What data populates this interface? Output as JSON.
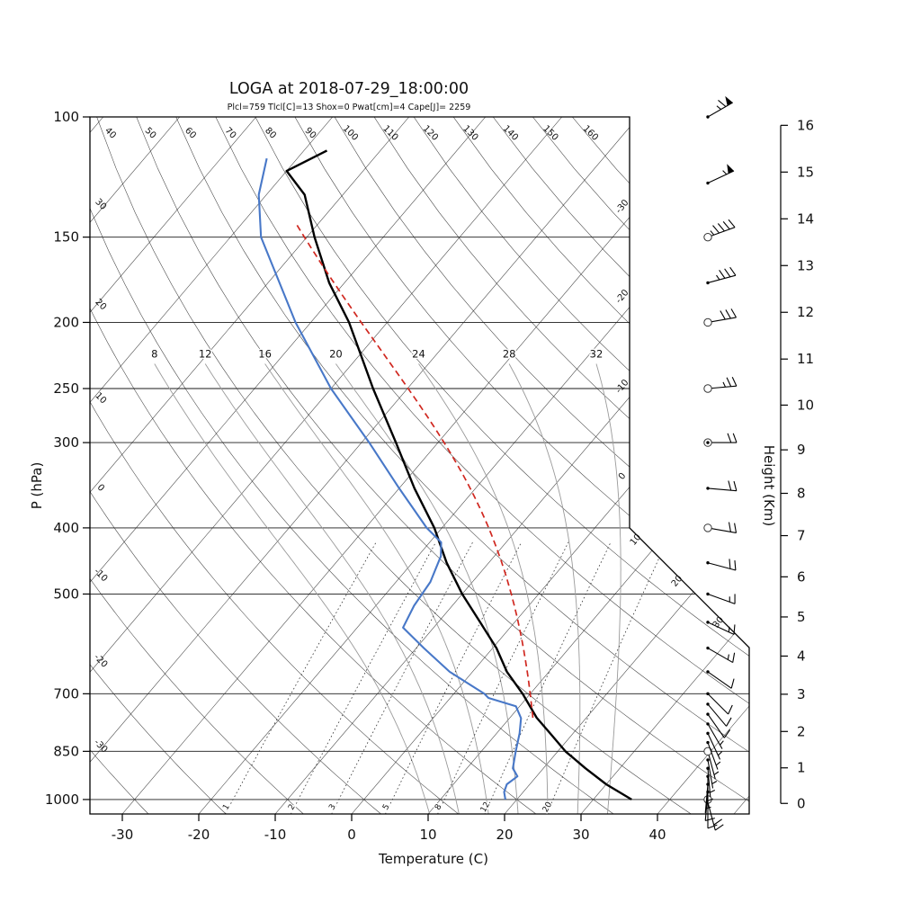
{
  "header": {
    "title": "LOGA at 2018-07-29_18:00:00",
    "stats_line": "Plcl=759 Tlcl[C]=13 Shox=0 Pwat[cm]=4 Cape[J]= 2259",
    "stats_color": "#bb5500"
  },
  "axes": {
    "pressure": {
      "title": "P (hPa)",
      "ticks": [
        100,
        150,
        200,
        250,
        300,
        400,
        500,
        700,
        850,
        1000
      ]
    },
    "temperature": {
      "title": "Temperature (C)",
      "ticks": [
        -30,
        -20,
        -10,
        0,
        10,
        20,
        30,
        40
      ]
    },
    "height": {
      "title": "Height (Km)",
      "ticks": [
        0,
        1,
        2,
        3,
        4,
        5,
        6,
        7,
        8,
        9,
        10,
        11,
        12,
        13,
        14,
        15,
        16
      ]
    }
  },
  "background_lines": {
    "isotherms": {
      "min": -110,
      "max": 50,
      "step": 10,
      "edge_labels_right": [
        -30,
        -20,
        -10,
        0
      ],
      "edge_labels_diagonal": [
        10,
        20,
        30
      ]
    },
    "dry_adiabats": {
      "min": -30,
      "max": 160,
      "step": 10,
      "left_edge_labels": [
        40,
        30,
        20,
        10,
        0,
        -10,
        -20,
        -30
      ],
      "top_edge_labels": [
        50,
        60,
        70,
        80,
        90,
        100,
        110,
        120,
        130,
        140,
        150,
        160
      ]
    },
    "moist_adiabats": {
      "values": [
        8,
        12,
        16,
        20,
        24,
        28,
        32
      ],
      "label_pressure_hpa": 225,
      "top_pressure_hpa": 230
    },
    "mixing_ratio_gkg": {
      "values": [
        1,
        2,
        3,
        5,
        8,
        12,
        20
      ],
      "top_pressure_hpa": 420
    }
  },
  "chart_data": {
    "type": "line",
    "variant": "skew-t-log-p-sounding",
    "x_axis": {
      "label": "Temperature (C)",
      "range_c": [
        -30,
        40
      ]
    },
    "y_axis": {
      "label": "P (hPa)",
      "range_hpa": [
        100,
        1050
      ],
      "scale": "log"
    },
    "series": [
      {
        "name": "temperature",
        "color": "#000000",
        "style": "solid",
        "points_p_t": [
          [
            1000,
            35
          ],
          [
            950,
            30
          ],
          [
            900,
            25.5
          ],
          [
            850,
            21
          ],
          [
            800,
            17
          ],
          [
            759,
            13.5
          ],
          [
            700,
            9
          ],
          [
            650,
            4.5
          ],
          [
            600,
            0.5
          ],
          [
            550,
            -4.5
          ],
          [
            500,
            -10
          ],
          [
            450,
            -15.5
          ],
          [
            400,
            -21
          ],
          [
            350,
            -28
          ],
          [
            300,
            -35.5
          ],
          [
            250,
            -44.5
          ],
          [
            200,
            -55
          ],
          [
            175,
            -62
          ],
          [
            150,
            -69
          ],
          [
            130,
            -75
          ],
          [
            120,
            -80
          ],
          [
            112,
            -77
          ]
        ]
      },
      {
        "name": "dewpoint",
        "color": "#4878c8",
        "style": "solid",
        "points_p_t": [
          [
            1000,
            18.5
          ],
          [
            975,
            17.5
          ],
          [
            950,
            17
          ],
          [
            925,
            17.5
          ],
          [
            900,
            16
          ],
          [
            850,
            14.5
          ],
          [
            800,
            13
          ],
          [
            760,
            11.5
          ],
          [
            730,
            9.5
          ],
          [
            710,
            5
          ],
          [
            700,
            4
          ],
          [
            650,
            -3
          ],
          [
            600,
            -9
          ],
          [
            560,
            -14
          ],
          [
            520,
            -15
          ],
          [
            480,
            -15.5
          ],
          [
            440,
            -17
          ],
          [
            420,
            -18.5
          ],
          [
            400,
            -22
          ],
          [
            350,
            -30
          ],
          [
            300,
            -39
          ],
          [
            250,
            -50
          ],
          [
            200,
            -62
          ],
          [
            150,
            -76
          ],
          [
            130,
            -81
          ],
          [
            115,
            -84
          ]
        ]
      },
      {
        "name": "parcel",
        "color": "#d02820",
        "style": "dashed",
        "start": {
          "pressure_hpa": 759,
          "temp_c": 13
        },
        "top_pressure_hpa": 140
      }
    ],
    "wind_barbs": [
      {
        "pressure_hpa": 1010,
        "speed_kt": 20,
        "direction_deg": 165,
        "marker": "dot"
      },
      {
        "pressure_hpa": 1000,
        "speed_kt": 10,
        "direction_deg": 180,
        "marker": "circle"
      },
      {
        "pressure_hpa": 975,
        "speed_kt": 10,
        "direction_deg": 185,
        "marker": "dot"
      },
      {
        "pressure_hpa": 950,
        "speed_kt": 5,
        "direction_deg": 185,
        "marker": "dot"
      },
      {
        "pressure_hpa": 925,
        "speed_kt": 7,
        "direction_deg": 180,
        "marker": "dot"
      },
      {
        "pressure_hpa": 900,
        "speed_kt": 5,
        "direction_deg": 175,
        "marker": "dot"
      },
      {
        "pressure_hpa": 875,
        "speed_kt": 5,
        "direction_deg": 170,
        "marker": "dot"
      },
      {
        "pressure_hpa": 850,
        "speed_kt": 7,
        "direction_deg": 165,
        "marker": "circle"
      },
      {
        "pressure_hpa": 825,
        "speed_kt": 5,
        "direction_deg": 160,
        "marker": "dot"
      },
      {
        "pressure_hpa": 800,
        "speed_kt": 5,
        "direction_deg": 155,
        "marker": "dot"
      },
      {
        "pressure_hpa": 775,
        "speed_kt": 7,
        "direction_deg": 150,
        "marker": "dot"
      },
      {
        "pressure_hpa": 750,
        "speed_kt": 10,
        "direction_deg": 145,
        "marker": "dot"
      },
      {
        "pressure_hpa": 725,
        "speed_kt": 10,
        "direction_deg": 140,
        "marker": "dot"
      },
      {
        "pressure_hpa": 700,
        "speed_kt": 10,
        "direction_deg": 135,
        "marker": "dot"
      },
      {
        "pressure_hpa": 650,
        "speed_kt": 12,
        "direction_deg": 125,
        "marker": "dot"
      },
      {
        "pressure_hpa": 600,
        "speed_kt": 15,
        "direction_deg": 120,
        "marker": "dot"
      },
      {
        "pressure_hpa": 550,
        "speed_kt": 15,
        "direction_deg": 115,
        "marker": "dot"
      },
      {
        "pressure_hpa": 500,
        "speed_kt": 15,
        "direction_deg": 110,
        "marker": "dot"
      },
      {
        "pressure_hpa": 450,
        "speed_kt": 18,
        "direction_deg": 105,
        "marker": "dot"
      },
      {
        "pressure_hpa": 400,
        "speed_kt": 20,
        "direction_deg": 100,
        "marker": "circle"
      },
      {
        "pressure_hpa": 350,
        "speed_kt": 20,
        "direction_deg": 95,
        "marker": "dot"
      },
      {
        "pressure_hpa": 300,
        "speed_kt": 22,
        "direction_deg": 90,
        "marker": "circle-dot"
      },
      {
        "pressure_hpa": 250,
        "speed_kt": 25,
        "direction_deg": 85,
        "marker": "circle"
      },
      {
        "pressure_hpa": 200,
        "speed_kt": 30,
        "direction_deg": 80,
        "marker": "circle"
      },
      {
        "pressure_hpa": 175,
        "speed_kt": 35,
        "direction_deg": 75,
        "marker": "dot"
      },
      {
        "pressure_hpa": 150,
        "speed_kt": 45,
        "direction_deg": 70,
        "marker": "circle"
      },
      {
        "pressure_hpa": 125,
        "speed_kt": 55,
        "direction_deg": 65,
        "marker": "dot"
      },
      {
        "pressure_hpa": 100,
        "speed_kt": 65,
        "direction_deg": 60,
        "marker": "dot"
      }
    ]
  },
  "colors": {
    "temperature_trace": "#000000",
    "dewpoint_trace": "#4878c8",
    "parcel_trace": "#d02820",
    "moist_adiabat": "#9a9a9a",
    "grid": "#1a1a1a"
  }
}
